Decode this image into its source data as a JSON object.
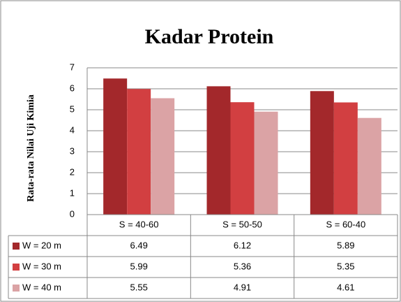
{
  "chart_data": {
    "type": "bar",
    "title": "Kadar Protein",
    "y_label": "Rata-rata Nilai Uji Kimia",
    "categories": [
      "S = 40-60",
      "S = 50-50",
      "S = 60-40"
    ],
    "series": [
      {
        "name": "W = 20 m",
        "color": "#a3282b",
        "values": [
          6.49,
          6.12,
          5.89
        ]
      },
      {
        "name": "W = 30 m",
        "color": "#d23f41",
        "values": [
          5.99,
          5.36,
          5.35
        ]
      },
      {
        "name": "W = 40 m",
        "color": "#dba3a5",
        "values": [
          5.55,
          4.91,
          4.61
        ]
      }
    ],
    "ylim": [
      0,
      7
    ],
    "yticks": [
      0,
      1,
      2,
      3,
      4,
      5,
      6,
      7
    ],
    "grid": true
  }
}
